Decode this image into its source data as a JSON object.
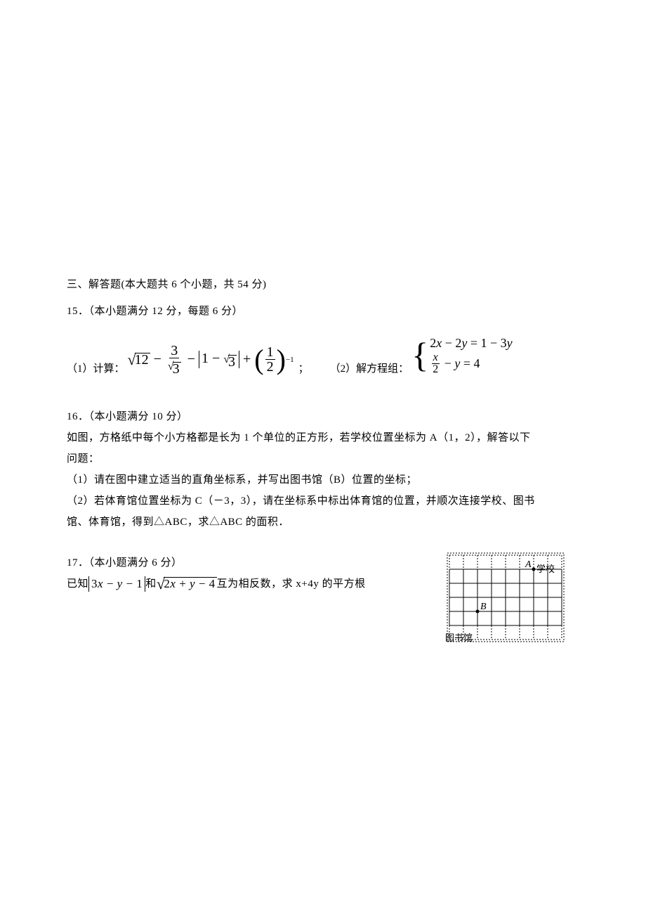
{
  "section_header": "三、解答题(本大题共 6 个小题，共 54 分)",
  "q15": {
    "header": "15．（本小题满分 12 分，每题 6 分）",
    "part1_label": "（1）计算：",
    "part1_eq": {
      "sqrt12": "12",
      "frac_num": "3",
      "frac_den": "3",
      "abs_inner_1": "1",
      "abs_inner_sqrt": "3",
      "paren_num": "1",
      "paren_den": "2",
      "exponent": "−1"
    },
    "semicolon": "；",
    "part2_label": "（2）解方程组：",
    "system": {
      "line1_lhs_a": "2",
      "line1_lhs_b": "2",
      "line1_rhs_a": "1",
      "line1_rhs_b": "3",
      "line2_frac_num": "x",
      "line2_frac_den": "2",
      "line2_rhs": "4"
    }
  },
  "q16": {
    "header": "16．（本小题满分 10 分）",
    "l1": "如图，方格纸中每个小方格都是长为 1 个单位的正方形，若学校位置坐标为 A（1，2），解答以下",
    "l2": "问题：",
    "l3": "（1）请在图中建立适当的直角坐标系，并写出图书馆（B）位置的坐标；",
    "l4": "（2）若体育馆位置坐标为 C（－3，3），请在坐标系中标出体育馆的位置，并顺次连接学校、图书",
    "l5": "馆、体育馆，得到△ABC，求△ABC 的面积．"
  },
  "q17": {
    "header": "17．（本小题满分 6 分）",
    "pre": "已知",
    "abs_a": "3",
    "abs_b": "1",
    "mid": "和",
    "sqrt_a": "2",
    "sqrt_b": "4",
    "post": "互为相反数，求 x+4y 的平方根"
  },
  "grid": {
    "cols": 8,
    "rows": 6,
    "cell": 20,
    "outer_pad": 2,
    "A_label": "A",
    "A_text": "学校",
    "B_label": "B",
    "B_text": "图书馆",
    "A_col": 6,
    "A_row": 1,
    "B_col": 2,
    "B_row": 4,
    "dash_color": "#000000",
    "solid_color": "#000000"
  }
}
